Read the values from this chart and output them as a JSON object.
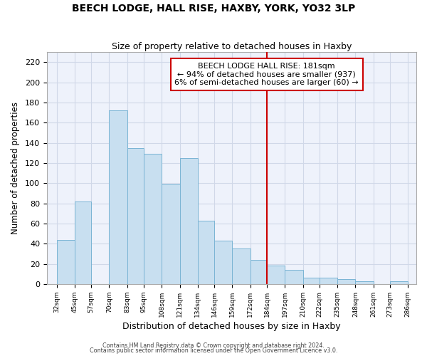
{
  "title": "BEECH LODGE, HALL RISE, HAXBY, YORK, YO32 3LP",
  "subtitle": "Size of property relative to detached houses in Haxby",
  "xlabel": "Distribution of detached houses by size in Haxby",
  "ylabel": "Number of detached properties",
  "bar_left_edges": [
    32,
    45,
    57,
    70,
    83,
    95,
    108,
    121,
    134,
    146,
    159,
    172,
    184,
    197,
    210,
    222,
    235,
    248,
    261,
    273
  ],
  "bar_heights": [
    44,
    82,
    0,
    172,
    135,
    129,
    99,
    125,
    63,
    43,
    35,
    24,
    18,
    14,
    6,
    6,
    5,
    3,
    0,
    3
  ],
  "bar_right_edges": [
    45,
    57,
    70,
    83,
    95,
    108,
    121,
    134,
    146,
    159,
    172,
    184,
    197,
    210,
    222,
    235,
    248,
    261,
    273,
    286
  ],
  "bar_color": "#c8dff0",
  "bar_edgecolor": "#7ab4d4",
  "tick_labels": [
    "32sqm",
    "45sqm",
    "57sqm",
    "70sqm",
    "83sqm",
    "95sqm",
    "108sqm",
    "121sqm",
    "134sqm",
    "146sqm",
    "159sqm",
    "172sqm",
    "184sqm",
    "197sqm",
    "210sqm",
    "222sqm",
    "235sqm",
    "248sqm",
    "261sqm",
    "273sqm",
    "286sqm"
  ],
  "tick_positions": [
    32,
    45,
    57,
    70,
    83,
    95,
    108,
    121,
    134,
    146,
    159,
    172,
    184,
    197,
    210,
    222,
    235,
    248,
    261,
    273,
    286
  ],
  "ylim": [
    0,
    230
  ],
  "xlim": [
    25,
    292
  ],
  "vline_x": 184,
  "vline_color": "#cc0000",
  "annotation_title": "BEECH LODGE HALL RISE: 181sqm",
  "annotation_line1": "← 94% of detached houses are smaller (937)",
  "annotation_line2": "6% of semi-detached houses are larger (60) →",
  "footnote1": "Contains HM Land Registry data © Crown copyright and database right 2024.",
  "footnote2": "Contains public sector information licensed under the Open Government Licence v3.0.",
  "grid_color": "#d0d8e8",
  "background_color": "#eef2fb",
  "yticks": [
    0,
    20,
    40,
    60,
    80,
    100,
    120,
    140,
    160,
    180,
    200,
    220
  ],
  "title_fontsize": 10,
  "subtitle_fontsize": 9,
  "fig_width": 6.0,
  "fig_height": 5.0,
  "fig_dpi": 100
}
